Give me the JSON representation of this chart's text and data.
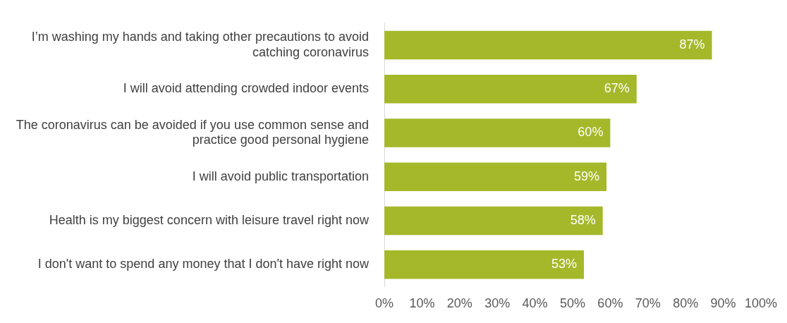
{
  "chart_data": {
    "type": "bar",
    "orientation": "horizontal",
    "categories": [
      "I’m washing my hands and taking other precautions to avoid catching coronavirus",
      "I will avoid attending crowded indoor events",
      "The coronavirus can be avoided if you use common sense and practice good personal hygiene",
      "I will avoid public transportation",
      "Health is my biggest concern with leisure travel right now",
      "I don't want to spend any money that I don't have right now"
    ],
    "values": [
      87,
      67,
      60,
      59,
      58,
      53
    ],
    "value_labels": [
      "87%",
      "67%",
      "60%",
      "59%",
      "58%",
      "53%"
    ],
    "color": "#a5b82a",
    "xlim": [
      0,
      100
    ],
    "xticks": [
      {
        "value": 0,
        "label": "0%"
      },
      {
        "value": 10,
        "label": "10%"
      },
      {
        "value": 20,
        "label": "20%"
      },
      {
        "value": 30,
        "label": "30%"
      },
      {
        "value": 40,
        "label": "40%"
      },
      {
        "value": 50,
        "label": "50%"
      },
      {
        "value": 60,
        "label": "60%"
      },
      {
        "value": 70,
        "label": "70%"
      },
      {
        "value": 80,
        "label": "80%"
      },
      {
        "value": 90,
        "label": "90%"
      },
      {
        "value": 100,
        "label": "100%"
      }
    ],
    "grid": false,
    "legend": false
  }
}
